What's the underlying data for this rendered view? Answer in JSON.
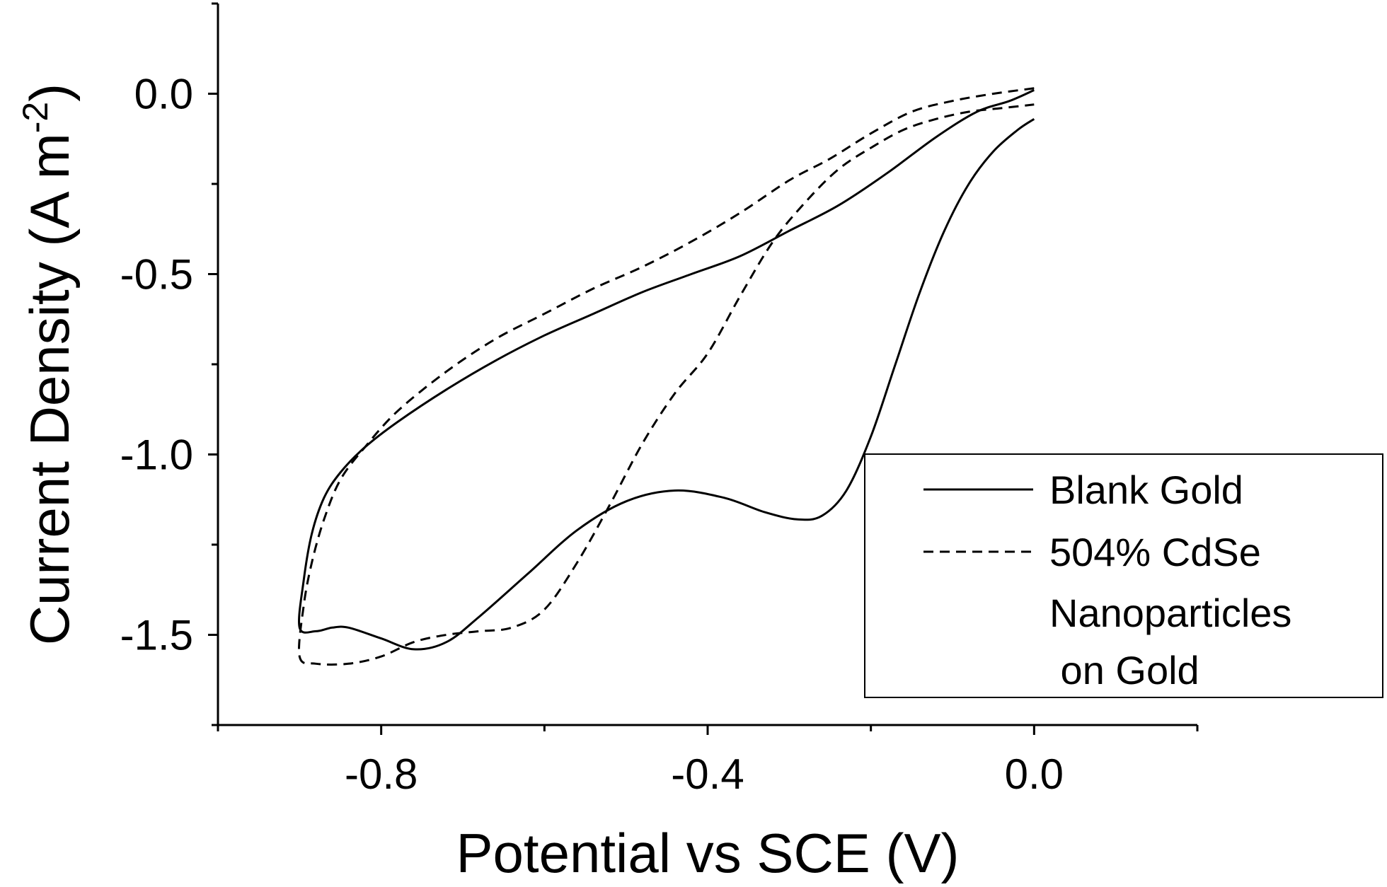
{
  "chart_data": {
    "type": "line",
    "title": "",
    "xlabel": "Potential vs SCE (V)",
    "ylabel": "Current Density (A m",
    "ylabel_sup": "-2",
    "ylabel_close": ")",
    "xlim": [
      -1.0,
      0.2
    ],
    "ylim": [
      -1.75,
      0.25
    ],
    "x_ticks": [
      {
        "value": -0.8,
        "label": "-0.8"
      },
      {
        "value": -0.4,
        "label": "-0.4"
      },
      {
        "value": 0.0,
        "label": "0.0"
      }
    ],
    "x_minor_ticks": [
      -1.0,
      -0.6,
      -0.2,
      0.2
    ],
    "y_ticks": [
      {
        "value": 0.0,
        "label": "0.0"
      },
      {
        "value": -0.5,
        "label": "-0.5"
      },
      {
        "value": -1.0,
        "label": "-1.0"
      },
      {
        "value": -1.5,
        "label": "-1.5"
      }
    ],
    "y_minor_ticks": [
      0.25,
      -0.25,
      -0.75,
      -1.25,
      -1.75
    ],
    "grid": false,
    "legend": {
      "position": "bottom-right",
      "entries": [
        {
          "label": "Blank Gold",
          "style": "solid"
        },
        {
          "label": "504% CdSe",
          "style": "dashed"
        },
        {
          "label": "Nanoparticles",
          "style": "none"
        },
        {
          "label": " on Gold",
          "style": "none"
        }
      ]
    },
    "series": [
      {
        "name": "Blank Gold",
        "style": "solid",
        "points": [
          [
            0.0,
            0.01
          ],
          [
            -0.03,
            -0.02
          ],
          [
            -0.07,
            -0.05
          ],
          [
            -0.12,
            -0.12
          ],
          [
            -0.18,
            -0.22
          ],
          [
            -0.24,
            -0.31
          ],
          [
            -0.3,
            -0.38
          ],
          [
            -0.36,
            -0.45
          ],
          [
            -0.42,
            -0.5
          ],
          [
            -0.48,
            -0.55
          ],
          [
            -0.54,
            -0.61
          ],
          [
            -0.6,
            -0.67
          ],
          [
            -0.66,
            -0.74
          ],
          [
            -0.72,
            -0.82
          ],
          [
            -0.78,
            -0.91
          ],
          [
            -0.82,
            -0.98
          ],
          [
            -0.85,
            -1.05
          ],
          [
            -0.87,
            -1.12
          ],
          [
            -0.885,
            -1.22
          ],
          [
            -0.895,
            -1.35
          ],
          [
            -0.9,
            -1.48
          ],
          [
            -0.88,
            -1.49
          ],
          [
            -0.86,
            -1.48
          ],
          [
            -0.84,
            -1.48
          ],
          [
            -0.8,
            -1.51
          ],
          [
            -0.76,
            -1.54
          ],
          [
            -0.72,
            -1.52
          ],
          [
            -0.68,
            -1.45
          ],
          [
            -0.62,
            -1.33
          ],
          [
            -0.56,
            -1.21
          ],
          [
            -0.5,
            -1.13
          ],
          [
            -0.44,
            -1.1
          ],
          [
            -0.38,
            -1.12
          ],
          [
            -0.33,
            -1.16
          ],
          [
            -0.29,
            -1.18
          ],
          [
            -0.26,
            -1.17
          ],
          [
            -0.23,
            -1.1
          ],
          [
            -0.2,
            -0.95
          ],
          [
            -0.17,
            -0.75
          ],
          [
            -0.14,
            -0.55
          ],
          [
            -0.11,
            -0.38
          ],
          [
            -0.08,
            -0.25
          ],
          [
            -0.05,
            -0.16
          ],
          [
            -0.02,
            -0.1
          ],
          [
            0.0,
            -0.07
          ]
        ]
      },
      {
        "name": "504% CdSe Nanoparticles on Gold",
        "style": "dashed",
        "points": [
          [
            0.0,
            0.015
          ],
          [
            -0.05,
            0.0
          ],
          [
            -0.1,
            -0.02
          ],
          [
            -0.15,
            -0.05
          ],
          [
            -0.2,
            -0.11
          ],
          [
            -0.25,
            -0.18
          ],
          [
            -0.3,
            -0.24
          ],
          [
            -0.36,
            -0.33
          ],
          [
            -0.42,
            -0.41
          ],
          [
            -0.48,
            -0.48
          ],
          [
            -0.54,
            -0.54
          ],
          [
            -0.6,
            -0.61
          ],
          [
            -0.66,
            -0.68
          ],
          [
            -0.72,
            -0.77
          ],
          [
            -0.78,
            -0.88
          ],
          [
            -0.82,
            -0.98
          ],
          [
            -0.85,
            -1.07
          ],
          [
            -0.87,
            -1.18
          ],
          [
            -0.885,
            -1.3
          ],
          [
            -0.895,
            -1.42
          ],
          [
            -0.9,
            -1.56
          ],
          [
            -0.88,
            -1.58
          ],
          [
            -0.84,
            -1.58
          ],
          [
            -0.8,
            -1.56
          ],
          [
            -0.76,
            -1.52
          ],
          [
            -0.72,
            -1.5
          ],
          [
            -0.68,
            -1.49
          ],
          [
            -0.64,
            -1.48
          ],
          [
            -0.6,
            -1.43
          ],
          [
            -0.56,
            -1.3
          ],
          [
            -0.52,
            -1.14
          ],
          [
            -0.48,
            -0.97
          ],
          [
            -0.44,
            -0.83
          ],
          [
            -0.4,
            -0.72
          ],
          [
            -0.36,
            -0.56
          ],
          [
            -0.32,
            -0.41
          ],
          [
            -0.28,
            -0.3
          ],
          [
            -0.24,
            -0.21
          ],
          [
            -0.2,
            -0.15
          ],
          [
            -0.16,
            -0.1
          ],
          [
            -0.12,
            -0.07
          ],
          [
            -0.08,
            -0.05
          ],
          [
            -0.04,
            -0.04
          ],
          [
            0.0,
            -0.03
          ]
        ]
      }
    ]
  }
}
